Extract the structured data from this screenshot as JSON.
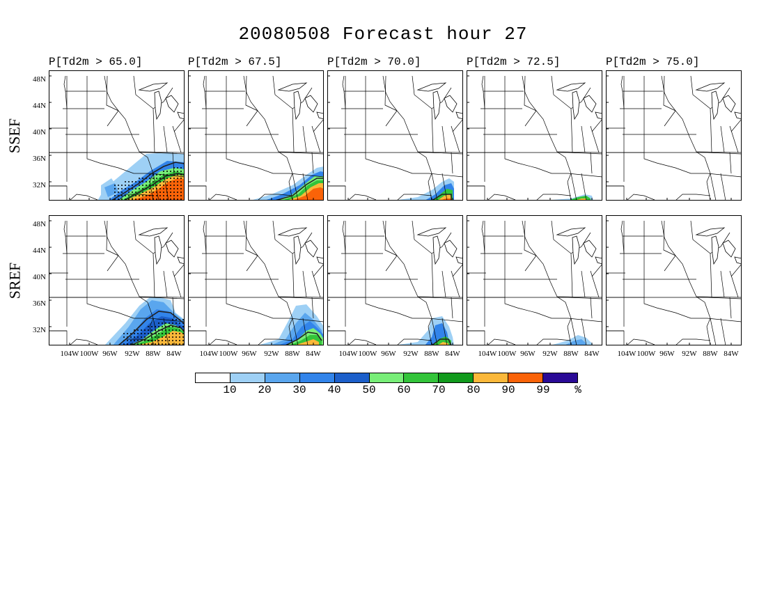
{
  "title": "20080508 Forecast hour 27",
  "columns": [
    {
      "label": "P[Td2m > 65.0]",
      "threshold": 65.0
    },
    {
      "label": "P[Td2m > 67.5]",
      "threshold": 67.5
    },
    {
      "label": "P[Td2m > 70.0]",
      "threshold": 70.0
    },
    {
      "label": "P[Td2m > 72.5]",
      "threshold": 72.5
    },
    {
      "label": "P[Td2m > 75.0]",
      "threshold": 75.0
    }
  ],
  "rows": [
    {
      "label": "SSEF"
    },
    {
      "label": "SREF"
    }
  ],
  "lat_ticks": [
    "48N",
    "44N",
    "40N",
    "36N",
    "32N"
  ],
  "lon_ticks": [
    "104W",
    "100W",
    "96W",
    "92W",
    "88W",
    "84W"
  ],
  "colorbar": {
    "colors": [
      "#ffffff",
      "#9ed0f5",
      "#5aa6ee",
      "#3284ea",
      "#1c5fca",
      "#78ee78",
      "#33c43a",
      "#119a1c",
      "#fbb83a",
      "#fa6308",
      "#2a0a96"
    ],
    "labels": [
      "10",
      "20",
      "30",
      "40",
      "50",
      "60",
      "70",
      "80",
      "90",
      "99",
      "%"
    ]
  },
  "map_colors": {
    "outline": "#000000",
    "hatch": "#000000"
  }
}
